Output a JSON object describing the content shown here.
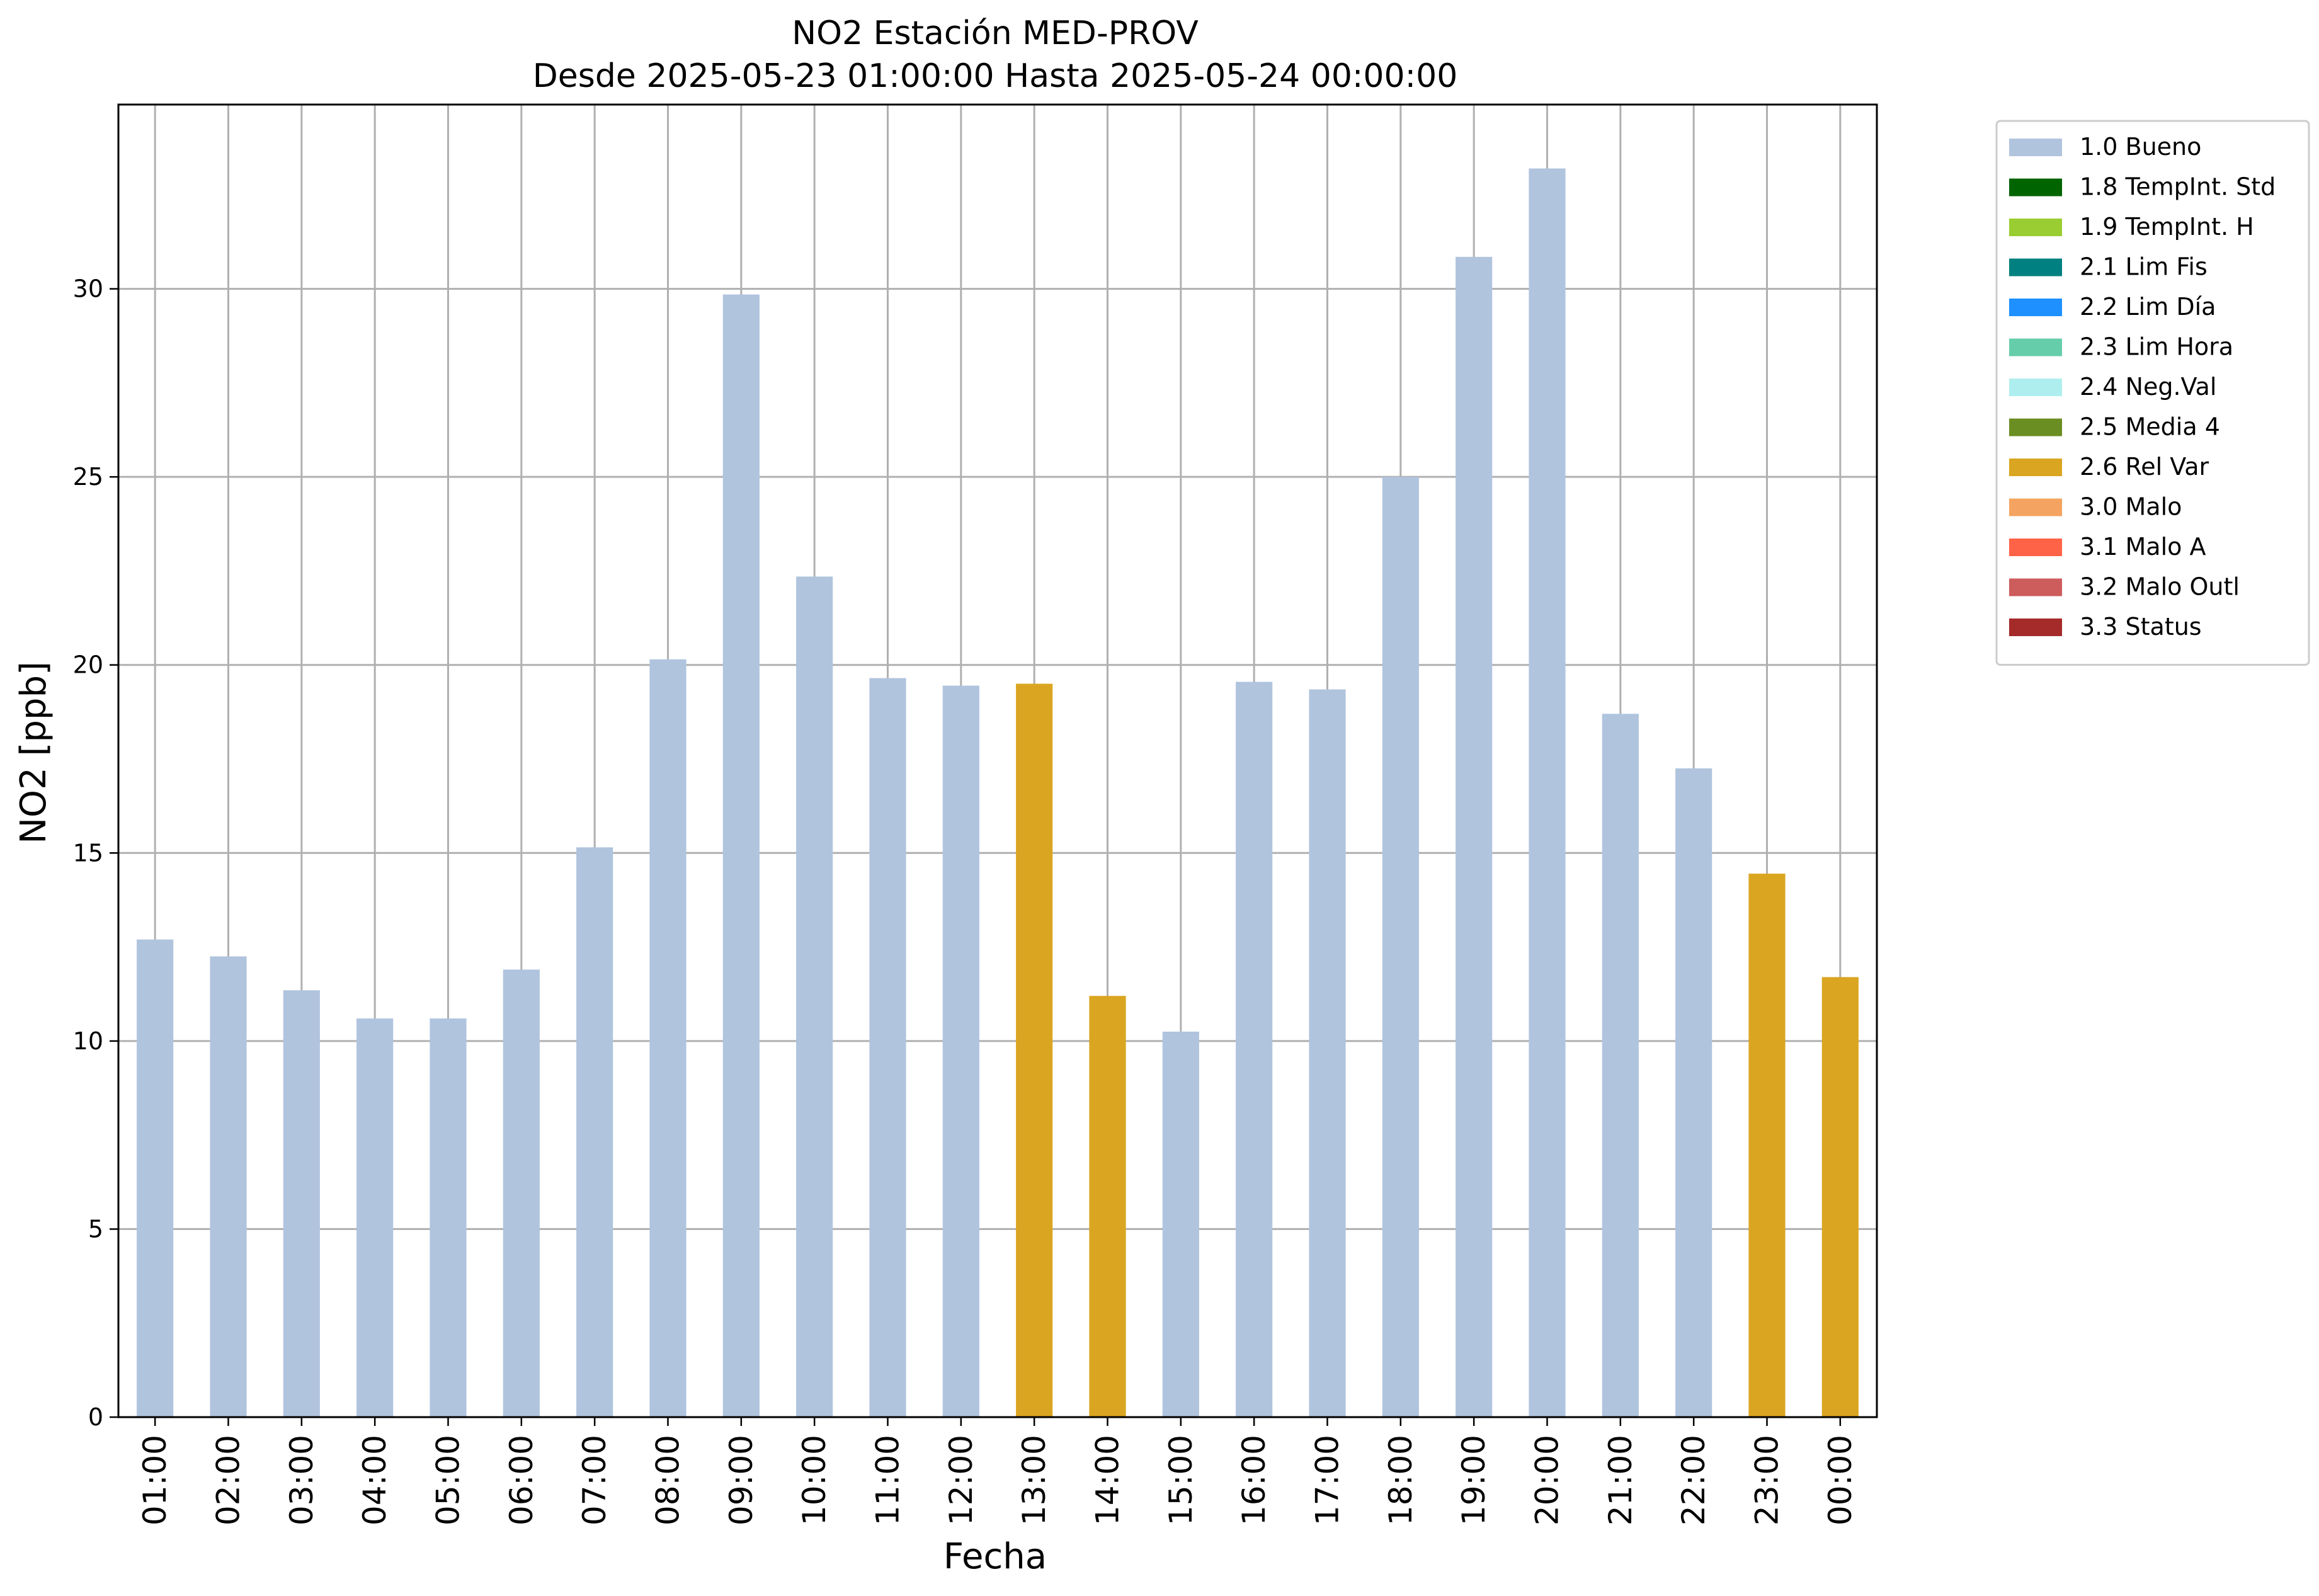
{
  "chart_data": {
    "type": "bar",
    "title": "NO2 Estación MED-PROV",
    "subtitle": "Desde 2025-05-23 01:00:00 Hasta 2025-05-24 00:00:00",
    "xlabel": "Fecha",
    "ylabel": "NO2 [ppb]",
    "ylim": [
      0,
      34.9
    ],
    "yticks": [
      0,
      5,
      10,
      15,
      20,
      25,
      30
    ],
    "grid": true,
    "legend_position": "outside-top-right",
    "categories": [
      "01:00",
      "02:00",
      "03:00",
      "04:00",
      "05:00",
      "06:00",
      "07:00",
      "08:00",
      "09:00",
      "10:00",
      "11:00",
      "12:00",
      "13:00",
      "14:00",
      "15:00",
      "16:00",
      "17:00",
      "18:00",
      "19:00",
      "20:00",
      "21:00",
      "22:00",
      "23:00",
      "00:00"
    ],
    "values": [
      12.7,
      12.25,
      11.35,
      10.6,
      10.6,
      11.9,
      15.15,
      20.15,
      29.85,
      22.35,
      19.65,
      19.45,
      19.5,
      11.2,
      10.25,
      19.55,
      19.35,
      25.0,
      30.85,
      33.2,
      18.7,
      17.25,
      14.45,
      11.7
    ],
    "flags": [
      "1.0 Bueno",
      "1.0 Bueno",
      "1.0 Bueno",
      "1.0 Bueno",
      "1.0 Bueno",
      "1.0 Bueno",
      "1.0 Bueno",
      "1.0 Bueno",
      "1.0 Bueno",
      "1.0 Bueno",
      "1.0 Bueno",
      "1.0 Bueno",
      "2.6 Rel Var",
      "2.6 Rel Var",
      "1.0 Bueno",
      "1.0 Bueno",
      "1.0 Bueno",
      "1.0 Bueno",
      "1.0 Bueno",
      "1.0 Bueno",
      "1.0 Bueno",
      "1.0 Bueno",
      "2.6 Rel Var",
      "2.6 Rel Var"
    ],
    "legend": [
      {
        "name": "1.0 Bueno",
        "color": "#b0c4de"
      },
      {
        "name": "1.8 TempInt. Std",
        "color": "#006400"
      },
      {
        "name": "1.9 TempInt. H",
        "color": "#9acd32"
      },
      {
        "name": "2.1 Lim Fis",
        "color": "#008080"
      },
      {
        "name": "2.2 Lim Día",
        "color": "#1e90ff"
      },
      {
        "name": "2.3 Lim Hora",
        "color": "#66cdaa"
      },
      {
        "name": "2.4 Neg.Val",
        "color": "#afeeee"
      },
      {
        "name": "2.5 Media 4",
        "color": "#6b8e23"
      },
      {
        "name": "2.6 Rel Var",
        "color": "#daa520"
      },
      {
        "name": "3.0 Malo",
        "color": "#f4a460"
      },
      {
        "name": "3.1 Malo A",
        "color": "#ff6347"
      },
      {
        "name": "3.2 Malo Outl",
        "color": "#cd5c5c"
      },
      {
        "name": "3.3 Status",
        "color": "#a52a2a"
      }
    ]
  }
}
